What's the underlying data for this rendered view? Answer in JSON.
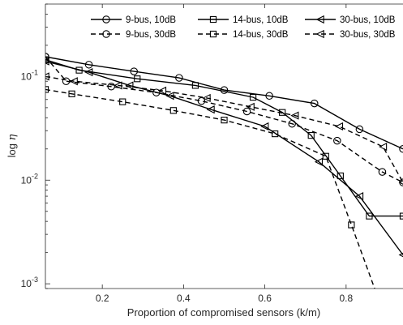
{
  "chart_data": {
    "type": "line",
    "xlabel": "Proportion of compromised sensors (k/m)",
    "ylabel_prefix": "log ",
    "ylabel_symbol": "η",
    "x_scale": "linear",
    "y_scale": "log",
    "xlim": [
      0.06,
      0.94
    ],
    "ylim": [
      0.0009,
      0.5
    ],
    "x_ticks": [
      0.2,
      0.4,
      0.6,
      0.8
    ],
    "x_tick_labels": [
      "0.2",
      "0.4",
      "0.6",
      "0.8"
    ],
    "y_ticks": [
      0.001,
      0.01,
      0.1
    ],
    "y_tick_labels": [
      {
        "base": "10",
        "exp": "-3"
      },
      {
        "base": "10",
        "exp": "-2"
      },
      {
        "base": "10",
        "exp": "-1"
      }
    ],
    "grid": false,
    "legend_position": "top-right",
    "series": [
      {
        "name": "9-bus, 10dB",
        "marker": "circle",
        "dash": "solid",
        "x": [
          0.06,
          0.167,
          0.278,
          0.389,
          0.5,
          0.611,
          0.722,
          0.833,
          0.94
        ],
        "y": [
          0.155,
          0.13,
          0.112,
          0.097,
          0.074,
          0.065,
          0.055,
          0.031,
          0.02
        ]
      },
      {
        "name": "14-bus, 10dB",
        "marker": "square",
        "dash": "solid",
        "x": [
          0.06,
          0.143,
          0.286,
          0.429,
          0.571,
          0.643,
          0.714,
          0.786,
          0.857,
          0.94
        ],
        "y": [
          0.145,
          0.115,
          0.095,
          0.082,
          0.063,
          0.045,
          0.027,
          0.011,
          0.0045,
          0.0045
        ]
      },
      {
        "name": "30-bus, 10dB",
        "marker": "triangle-left",
        "dash": "solid",
        "x": [
          0.06,
          0.167,
          0.267,
          0.367,
          0.467,
          0.6,
          0.733,
          0.833,
          0.94
        ],
        "y": [
          0.14,
          0.11,
          0.082,
          0.065,
          0.048,
          0.033,
          0.015,
          0.007,
          0.0019
        ]
      },
      {
        "name": "9-bus, 30dB",
        "marker": "circle",
        "dash": "dashed",
        "x": [
          0.06,
          0.111,
          0.222,
          0.333,
          0.444,
          0.556,
          0.667,
          0.778,
          0.889,
          0.94
        ],
        "y": [
          0.155,
          0.09,
          0.08,
          0.07,
          0.058,
          0.046,
          0.035,
          0.024,
          0.012,
          0.0095
        ]
      },
      {
        "name": "14-bus, 30dB",
        "marker": "square",
        "dash": "dashed",
        "x": [
          0.06,
          0.125,
          0.25,
          0.375,
          0.5,
          0.625,
          0.75,
          0.813,
          0.875,
          0.94
        ],
        "y": [
          0.075,
          0.068,
          0.057,
          0.047,
          0.038,
          0.028,
          0.017,
          0.0037,
          0.0008,
          0.0008
        ]
      },
      {
        "name": "30-bus, 30dB",
        "marker": "triangle-left",
        "dash": "dashed",
        "x": [
          0.06,
          0.13,
          0.239,
          0.348,
          0.457,
          0.565,
          0.674,
          0.783,
          0.891,
          0.94
        ],
        "y": [
          0.1,
          0.09,
          0.082,
          0.073,
          0.062,
          0.051,
          0.042,
          0.033,
          0.021,
          0.0095
        ]
      }
    ]
  }
}
